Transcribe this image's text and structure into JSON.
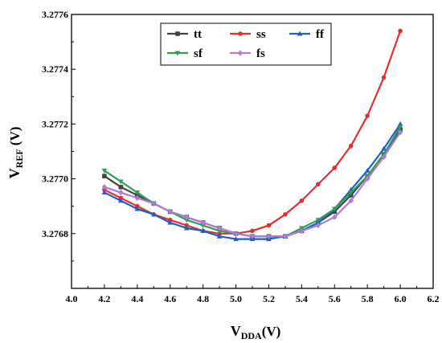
{
  "chart_data": {
    "type": "line",
    "xlabel": {
      "main": "V",
      "sub": "DDA",
      "unit": "(V)"
    },
    "ylabel": {
      "main": "V",
      "sub": "REF",
      "unit": " (V)"
    },
    "xlim": [
      4.0,
      6.2
    ],
    "ylim": [
      3.2766,
      3.2776
    ],
    "xticks": [
      "4.0",
      "4.2",
      "4.4",
      "4.6",
      "4.8",
      "5.0",
      "5.2",
      "5.4",
      "5.6",
      "5.8",
      "6.0",
      "6.2"
    ],
    "yticks": [
      "3.2768",
      "3.2770",
      "3.2772",
      "3.2774",
      "3.2776"
    ],
    "grid": false,
    "legend_position": "top-right",
    "x": [
      4.2,
      4.3,
      4.4,
      4.5,
      4.6,
      4.7,
      4.8,
      4.9,
      5.0,
      5.1,
      5.2,
      5.3,
      5.4,
      5.5,
      5.6,
      5.7,
      5.8,
      5.9,
      6.0
    ],
    "series": [
      {
        "name": "tt",
        "color": "#444444",
        "marker": "square",
        "values": [
          3.27701,
          3.27697,
          3.27694,
          3.27691,
          3.27688,
          3.27686,
          3.27684,
          3.27682,
          3.2768,
          3.27679,
          3.27679,
          3.27679,
          3.27681,
          3.27684,
          3.27688,
          3.27694,
          3.27701,
          3.27709,
          3.27718
        ]
      },
      {
        "name": "ss",
        "color": "#e03030",
        "marker": "circle",
        "values": [
          3.27696,
          3.27693,
          3.2769,
          3.27687,
          3.27685,
          3.27683,
          3.27681,
          3.2768,
          3.2768,
          3.27681,
          3.27683,
          3.27687,
          3.27692,
          3.27698,
          3.27704,
          3.27712,
          3.27723,
          3.27737,
          3.27754
        ]
      },
      {
        "name": "ff",
        "color": "#1f5fc4",
        "marker": "triangle",
        "values": [
          3.27695,
          3.27692,
          3.27689,
          3.27687,
          3.27684,
          3.27682,
          3.27681,
          3.27679,
          3.27678,
          3.27678,
          3.27678,
          3.27679,
          3.27681,
          3.27684,
          3.27689,
          3.27696,
          3.27703,
          3.27711,
          3.2772
        ]
      },
      {
        "name": "sf",
        "color": "#2e9e55",
        "marker": "triangle-down",
        "values": [
          3.27703,
          3.27699,
          3.27695,
          3.27691,
          3.27688,
          3.27685,
          3.27683,
          3.27681,
          3.2768,
          3.27679,
          3.27679,
          3.27679,
          3.27682,
          3.27685,
          3.27689,
          3.27695,
          3.27701,
          3.27709,
          3.27719
        ]
      },
      {
        "name": "fs",
        "color": "#b07ad8",
        "marker": "diamond",
        "values": [
          3.27697,
          3.27695,
          3.27693,
          3.27691,
          3.27688,
          3.27686,
          3.27684,
          3.27682,
          3.2768,
          3.27679,
          3.27679,
          3.27679,
          3.27681,
          3.27683,
          3.27686,
          3.27692,
          3.277,
          3.27708,
          3.27717
        ]
      }
    ]
  }
}
